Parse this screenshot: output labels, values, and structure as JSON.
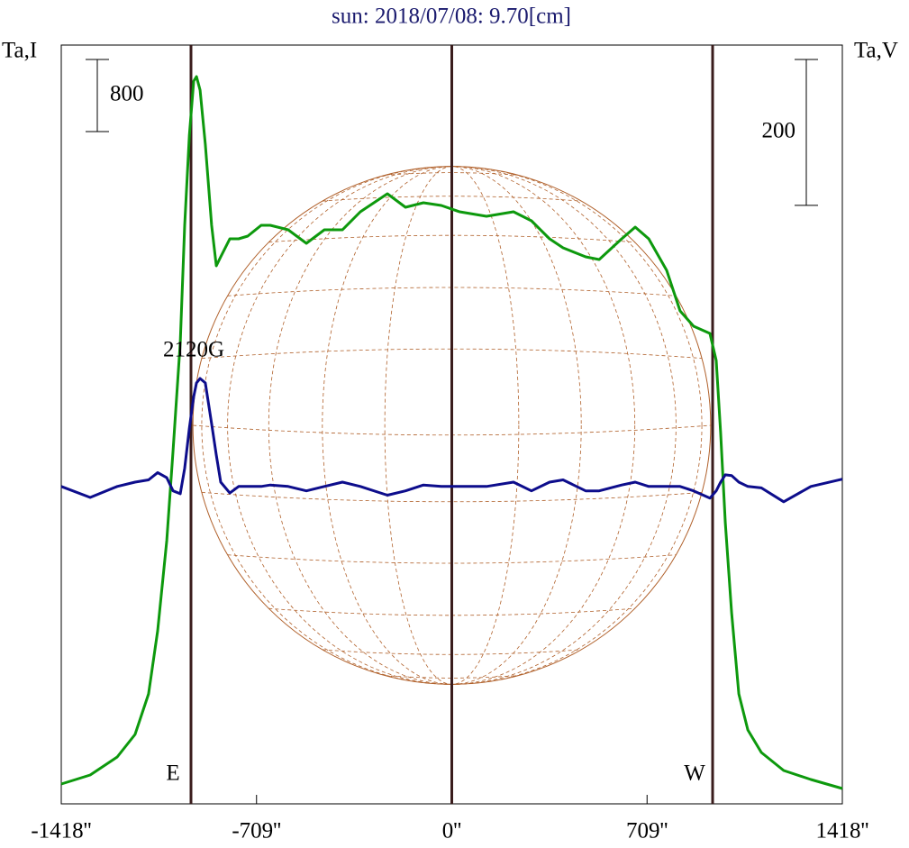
{
  "chart_data": {
    "type": "line",
    "title": "sun: 2018/07/08: 9.70[cm]",
    "ylabel": "Ta,I",
    "y2label": "Ta,V",
    "x": [
      -1418,
      -1313,
      -1215,
      -1150,
      -1101,
      -1068,
      -1035,
      -1012,
      -986,
      -970,
      -953,
      -937,
      -927,
      -914,
      -895,
      -872,
      -855,
      -839,
      -806,
      -774,
      -741,
      -692,
      -659,
      -594,
      -528,
      -463,
      -397,
      -332,
      -234,
      -168,
      -103,
      -38,
      28,
      126,
      224,
      289,
      355,
      404,
      486,
      535,
      617,
      666,
      715,
      780,
      829,
      878,
      937,
      960,
      976,
      993,
      1016,
      1042,
      1075,
      1124,
      1205,
      1304,
      1418
    ],
    "series": [
      {
        "name": "Ta,I",
        "color": "#0d990d",
        "values": [
          220,
          320,
          520,
          770,
          1220,
          1920,
          2920,
          3920,
          5120,
          6420,
          7420,
          8020,
          8070,
          7920,
          7320,
          6420,
          5970,
          6070,
          6270,
          6270,
          6300,
          6420,
          6420,
          6370,
          6220,
          6370,
          6370,
          6570,
          6770,
          6620,
          6670,
          6640,
          6570,
          6520,
          6570,
          6470,
          6270,
          6170,
          6070,
          6040,
          6270,
          6400,
          6270,
          5920,
          5470,
          5300,
          5220,
          4920,
          4120,
          3120,
          2120,
          1220,
          820,
          570,
          370,
          270,
          170
        ]
      },
      {
        "name": "Ta,V",
        "color": "#0d0d8c",
        "axis": "y2",
        "values": [
          0,
          -15,
          0,
          6,
          9,
          19,
          12,
          -6,
          -10,
          25,
          80,
          123,
          142,
          148,
          142,
          86,
          43,
          6,
          -9,
          0,
          0,
          0,
          2,
          0,
          -6,
          0,
          6,
          0,
          -12,
          -6,
          2,
          0,
          0,
          0,
          6,
          -6,
          6,
          9,
          -6,
          -6,
          2,
          6,
          0,
          0,
          0,
          -6,
          -16,
          -6,
          6,
          16,
          15,
          6,
          0,
          -2,
          -21,
          0,
          10
        ]
      }
    ],
    "xlim": [
      -1418,
      1418
    ],
    "xticks": [
      {
        "value": -1418,
        "label": "-1418''"
      },
      {
        "value": -709,
        "label": "-709''"
      },
      {
        "value": 0,
        "label": "0''"
      },
      {
        "value": 709,
        "label": "709''"
      },
      {
        "value": 1418,
        "label": "1418''"
      }
    ],
    "ylim": [
      0,
      8420
    ],
    "y2lim": [
      -435,
      605
    ],
    "scale_bars": [
      {
        "value": 800,
        "axis": "y"
      },
      {
        "value": 200,
        "axis": "y2"
      }
    ],
    "vlines": [
      -947,
      0,
      947
    ],
    "vline_labels": [
      "E",
      null,
      "W"
    ],
    "disk_radius": 940,
    "annotations": [
      {
        "text": "2120G",
        "x": -937
      }
    ]
  }
}
